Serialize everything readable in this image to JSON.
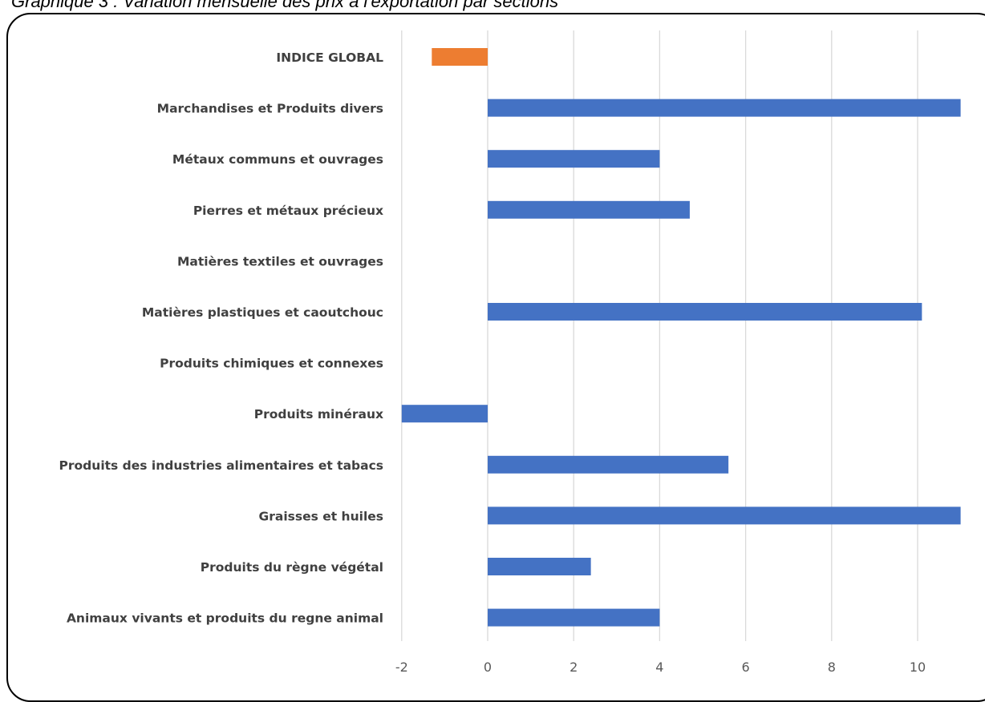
{
  "caption": "Graphique 3 : Variation mensuelle des prix à l'exportation par sections",
  "colors": {
    "bar": "#4472C4",
    "highlight": "#ED7D31",
    "grid": "#D9D9D9"
  },
  "chart_data": {
    "type": "bar",
    "orientation": "horizontal",
    "title": "",
    "xlabel": "",
    "ylabel": "",
    "xlim": [
      -2,
      11
    ],
    "xticks": [
      -2,
      0,
      2,
      4,
      6,
      8,
      10
    ],
    "grid": true,
    "categories": [
      "INDICE GLOBAL",
      "Marchandises et Produits divers",
      "Métaux communs et ouvrages",
      "Pierres et métaux précieux",
      "Matières textiles et ouvrages",
      "Matières plastiques et caoutchouc",
      "Produits chimiques et connexes",
      "Produits minéraux",
      "Produits des industries alimentaires et tabacs",
      "Graisses et huiles",
      "Produits du règne végétal",
      "Animaux vivants et produits du regne animal"
    ],
    "values": [
      -1.3,
      11.0,
      4.0,
      4.7,
      0,
      10.1,
      0,
      -2.0,
      5.6,
      11.0,
      2.4,
      4.0
    ],
    "highlight_category": "INDICE GLOBAL"
  }
}
